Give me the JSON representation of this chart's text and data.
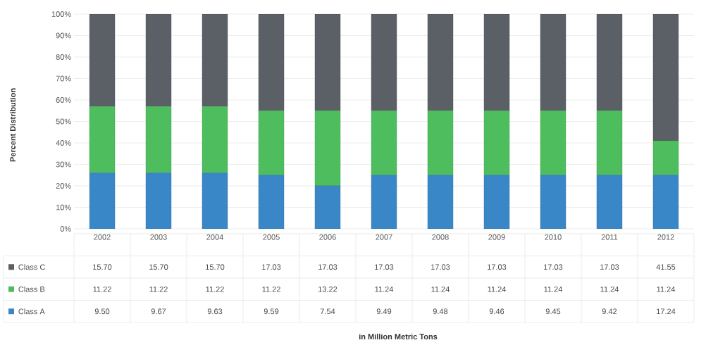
{
  "chart_data": {
    "type": "bar",
    "stacked": true,
    "ylabel": "Percent Distribution",
    "categories": [
      "2002",
      "2003",
      "2004",
      "2005",
      "2006",
      "2007",
      "2008",
      "2009",
      "2010",
      "2011",
      "2012"
    ],
    "series": [
      {
        "name": "Class A",
        "color": "#3a87c8",
        "values": [
          26,
          26,
          26,
          25,
          20,
          25,
          25,
          25,
          25,
          25,
          25
        ]
      },
      {
        "name": "Class B",
        "color": "#4dbd5e",
        "values": [
          31,
          31,
          31,
          30,
          35,
          30,
          30,
          30,
          30,
          30,
          16
        ]
      },
      {
        "name": "Class C",
        "color": "#5a6066",
        "values": [
          43,
          43,
          43,
          45,
          45,
          45,
          45,
          45,
          45,
          45,
          59
        ]
      }
    ],
    "annotations": [
      "15.70",
      "15.70",
      "15.70",
      "17.03",
      "17.03",
      "17.03",
      "17.03",
      "17.03",
      "17.03",
      "17.03",
      "41.55",
      "11.22",
      "11.22",
      "11.22",
      "11.22",
      "13.22",
      "11.24",
      "11.24",
      "11.24",
      "11.24",
      "11.24",
      "11.24",
      "9.50",
      "9.67",
      "9.63",
      "9.59",
      "7.54",
      "9.49",
      "9.48",
      "9.46",
      "9.45",
      "9.42",
      "17.24",
      "in Million Metric Tons"
    ],
    "ylim": [
      0,
      100
    ],
    "yticks": [
      {
        "value": 0,
        "label": "0%"
      },
      {
        "value": 10,
        "label": "10%"
      },
      {
        "value": 20,
        "label": "20%"
      },
      {
        "value": 30,
        "label": "30%"
      },
      {
        "value": 40,
        "label": "40%"
      },
      {
        "value": 50,
        "label": "50%"
      },
      {
        "value": 60,
        "label": "60%"
      },
      {
        "value": 70,
        "label": "70%"
      },
      {
        "value": 80,
        "label": "80%"
      },
      {
        "value": 90,
        "label": "90%"
      },
      {
        "value": 100,
        "label": "100%"
      }
    ],
    "grid": "y",
    "legend": "bottom left"
  }
}
